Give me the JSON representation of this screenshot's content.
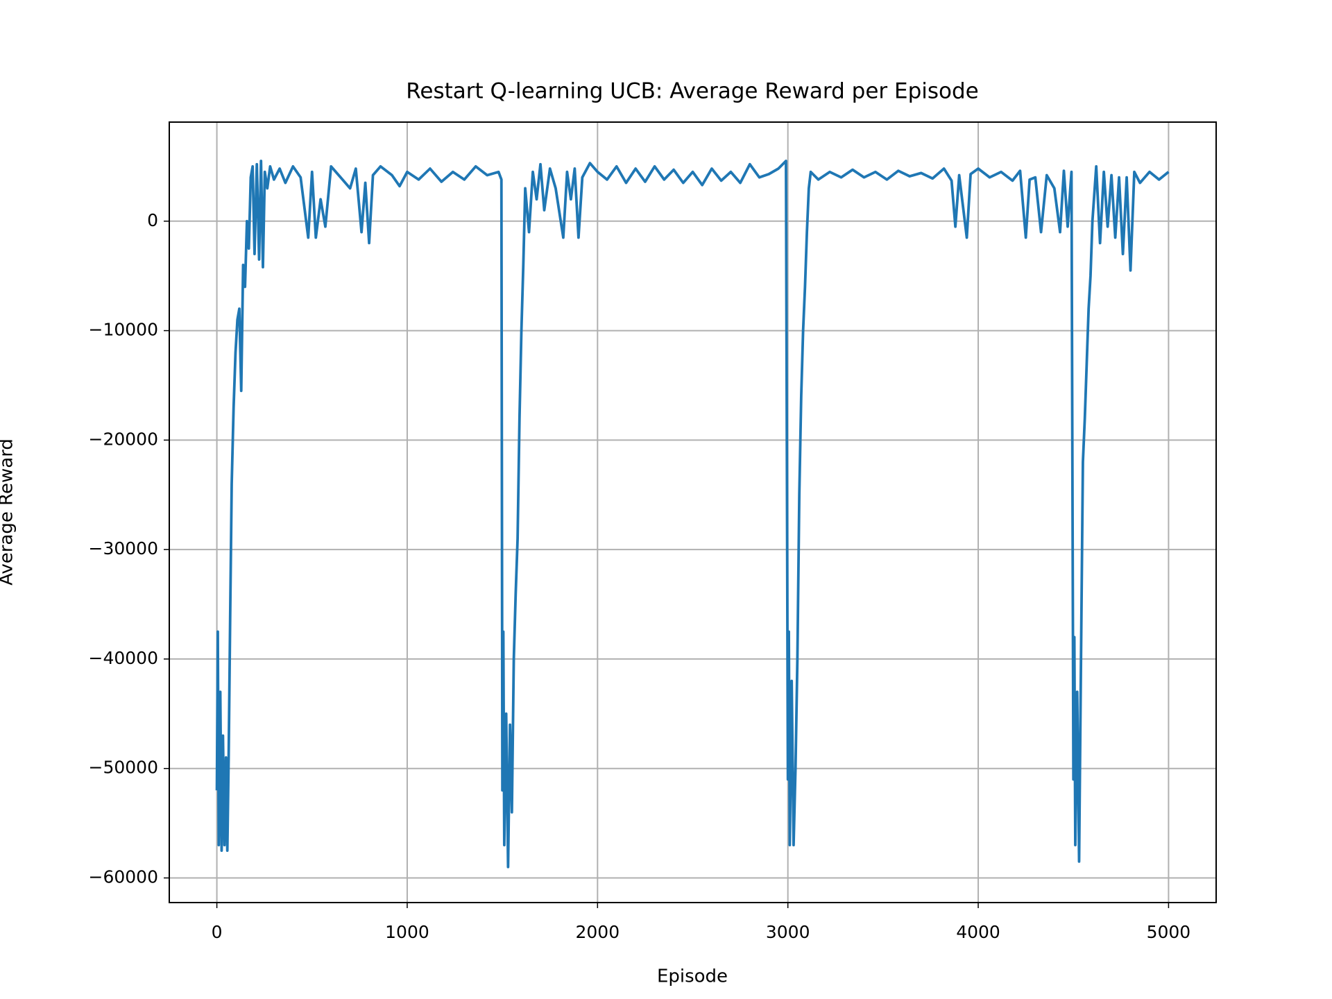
{
  "chart_data": {
    "type": "line",
    "title": "Restart Q-learning UCB: Average Reward per Episode",
    "xlabel": "Episode",
    "ylabel": "Average Reward",
    "color": "#1f77b4",
    "grid": true,
    "xlim": [
      -250,
      5250
    ],
    "ylim": [
      -62250,
      9050
    ],
    "xticks": [
      0,
      1000,
      2000,
      3000,
      4000,
      5000
    ],
    "yticks": [
      {
        "value": 0,
        "label": "0"
      },
      {
        "value": -10000,
        "label": "−10000"
      },
      {
        "value": -20000,
        "label": "−20000"
      },
      {
        "value": -30000,
        "label": "−30000"
      },
      {
        "value": -40000,
        "label": "−40000"
      },
      {
        "value": -50000,
        "label": "−50000"
      },
      {
        "value": -60000,
        "label": "−60000"
      }
    ],
    "x": [
      0,
      5,
      10,
      18,
      25,
      32,
      40,
      48,
      55,
      62,
      70,
      78,
      88,
      98,
      108,
      118,
      128,
      138,
      148,
      158,
      168,
      178,
      188,
      198,
      210,
      222,
      232,
      242,
      252,
      265,
      280,
      300,
      330,
      360,
      400,
      440,
      480,
      500,
      520,
      545,
      570,
      600,
      650,
      700,
      730,
      760,
      780,
      800,
      820,
      860,
      920,
      960,
      1000,
      1060,
      1120,
      1180,
      1240,
      1300,
      1360,
      1420,
      1480,
      1495,
      1500,
      1505,
      1510,
      1520,
      1530,
      1540,
      1550,
      1560,
      1570,
      1580,
      1590,
      1600,
      1610,
      1620,
      1640,
      1660,
      1680,
      1700,
      1720,
      1750,
      1780,
      1820,
      1840,
      1860,
      1880,
      1900,
      1920,
      1960,
      2000,
      2050,
      2100,
      2150,
      2200,
      2250,
      2300,
      2350,
      2400,
      2450,
      2500,
      2550,
      2600,
      2650,
      2700,
      2750,
      2800,
      2850,
      2900,
      2950,
      2990,
      3000,
      3005,
      3010,
      3020,
      3030,
      3040,
      3050,
      3060,
      3070,
      3080,
      3090,
      3100,
      3110,
      3120,
      3160,
      3220,
      3280,
      3340,
      3400,
      3460,
      3520,
      3580,
      3640,
      3700,
      3760,
      3820,
      3860,
      3880,
      3900,
      3940,
      3960,
      4000,
      4060,
      4120,
      4180,
      4220,
      4250,
      4270,
      4300,
      4330,
      4360,
      4400,
      4430,
      4450,
      4470,
      4490,
      4500,
      4505,
      4510,
      4520,
      4530,
      4540,
      4550,
      4560,
      4570,
      4580,
      4590,
      4600,
      4620,
      4640,
      4660,
      4680,
      4700,
      4720,
      4740,
      4760,
      4780,
      4800,
      4820,
      4850,
      4900,
      4950,
      5000
    ],
    "values": [
      -52000,
      -37500,
      -57000,
      -43000,
      -57500,
      -47000,
      -57000,
      -49000,
      -57500,
      -49000,
      -36000,
      -24000,
      -17000,
      -12000,
      -9000,
      -8000,
      -15500,
      -4000,
      -6000,
      0,
      -2500,
      4000,
      5000,
      -3000,
      5200,
      -3500,
      5500,
      -4200,
      4500,
      3000,
      5000,
      3800,
      4800,
      3500,
      5000,
      4000,
      -1500,
      4500,
      -1500,
      2000,
      -500,
      5000,
      4000,
      3000,
      4800,
      -1000,
      3500,
      -2000,
      4200,
      5000,
      4200,
      3200,
      4500,
      3800,
      4800,
      3600,
      4500,
      3800,
      5000,
      4200,
      4500,
      3800,
      -52000,
      -37500,
      -57000,
      -45000,
      -59000,
      -46000,
      -54000,
      -40000,
      -34000,
      -29000,
      -18000,
      -10000,
      -4000,
      3000,
      -1000,
      4500,
      2000,
      5200,
      1000,
      4800,
      3000,
      -1500,
      4500,
      2000,
      4800,
      -1500,
      4000,
      5300,
      4500,
      3800,
      5000,
      3500,
      4800,
      3600,
      5000,
      3800,
      4700,
      3500,
      4500,
      3300,
      4800,
      3700,
      4500,
      3500,
      5200,
      4000,
      4300,
      4800,
      5500,
      -51000,
      -37500,
      -57000,
      -42000,
      -57000,
      -50000,
      -40000,
      -25000,
      -16000,
      -10000,
      -6000,
      -1000,
      3000,
      4500,
      3800,
      4500,
      4000,
      4700,
      4000,
      4500,
      3800,
      4600,
      4100,
      4400,
      3900,
      4800,
      3700,
      -500,
      4200,
      -1500,
      4300,
      4800,
      4000,
      4500,
      3700,
      4600,
      -1500,
      3800,
      4000,
      -1000,
      4200,
      3000,
      -1000,
      4600,
      -500,
      4500,
      -51000,
      -38000,
      -57000,
      -43000,
      -58500,
      -40000,
      -22000,
      -18000,
      -13000,
      -8000,
      -5000,
      0,
      5000,
      -2000,
      4500,
      -500,
      4200,
      -1500,
      4000,
      -3000,
      4000,
      -4500,
      4500,
      3500,
      4500,
      3800,
      4500
    ]
  }
}
